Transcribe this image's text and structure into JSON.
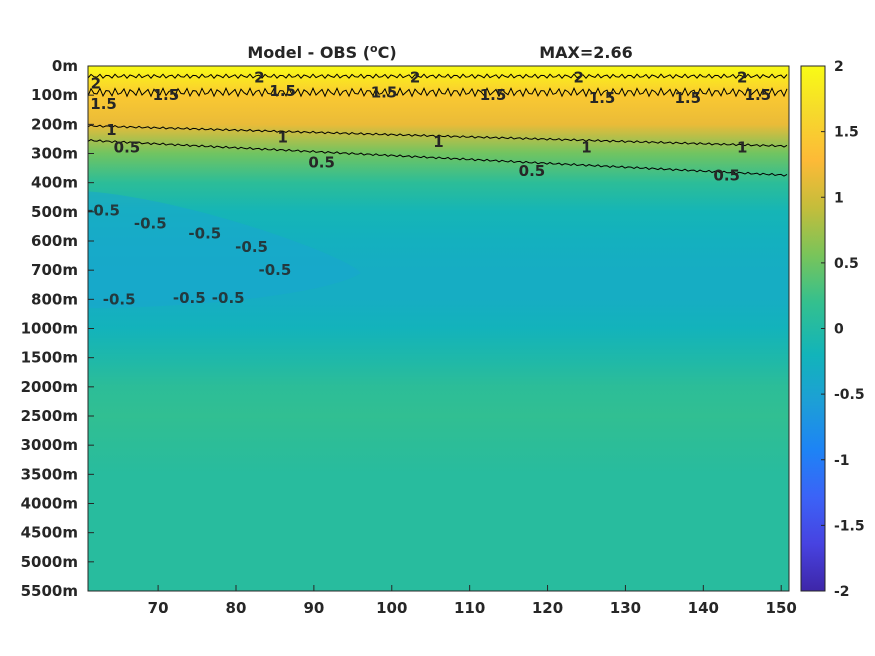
{
  "chart_data": {
    "type": "heatmap",
    "title_left": "Model - OBS (",
    "title_unit_sup": "o",
    "title_unit_after": "C)",
    "title_right": "MAX=2.66",
    "x_ticks": [
      "70",
      "80",
      "90",
      "100",
      "110",
      "120",
      "130",
      "140",
      "150"
    ],
    "x_tick_values": [
      70,
      80,
      90,
      100,
      110,
      120,
      130,
      140,
      150
    ],
    "xlim": [
      61,
      151
    ],
    "y_ticks": [
      "0m",
      "100m",
      "200m",
      "300m",
      "400m",
      "500m",
      "600m",
      "700m",
      "800m",
      "1000m",
      "1500m",
      "2000m",
      "2500m",
      "3000m",
      "3500m",
      "4000m",
      "4500m",
      "5000m",
      "5500m"
    ],
    "colorbar": {
      "min": -2,
      "max": 2,
      "tick_values": [
        2,
        1.5,
        1,
        0.5,
        0,
        -0.5,
        -1,
        -1.5,
        -2
      ],
      "tick_labels": [
        "2",
        "1.5",
        "1",
        "0.5",
        "0",
        "-0.5",
        "-1",
        "-1.5",
        "-2"
      ]
    },
    "colormap": [
      "#3e26a8",
      "#4743e1",
      "#3b63f7",
      "#1d84f5",
      "#1d9fd6",
      "#12b4ba",
      "#34c08e",
      "#79c45a",
      "#c4bd3b",
      "#fdba37",
      "#f6d92c",
      "#f9fb15"
    ],
    "depth_profile": [
      {
        "depth": "0m",
        "anomaly": 2.3
      },
      {
        "depth": "100m",
        "anomaly": 1.45
      },
      {
        "depth": "200m",
        "anomaly": 1.15
      },
      {
        "depth": "300m",
        "anomaly": 0.5
      },
      {
        "depth": "400m",
        "anomaly": 0.1
      },
      {
        "depth": "500m",
        "anomaly": -0.15
      },
      {
        "depth": "600m",
        "anomaly": -0.25
      },
      {
        "depth": "700m",
        "anomaly": -0.3
      },
      {
        "depth": "800m",
        "anomaly": -0.3
      },
      {
        "depth": "1000m",
        "anomaly": -0.2
      },
      {
        "depth": "1500m",
        "anomaly": -0.05
      },
      {
        "depth": "2000m",
        "anomaly": 0.1
      },
      {
        "depth": "2500m",
        "anomaly": 0.15
      },
      {
        "depth": "3000m",
        "anomaly": 0.1
      },
      {
        "depth": "3500m",
        "anomaly": 0.05
      },
      {
        "depth": "4000m",
        "anomaly": 0.05
      },
      {
        "depth": "4500m",
        "anomaly": 0.05
      },
      {
        "depth": "5000m",
        "anomaly": 0.05
      },
      {
        "depth": "5500m",
        "anomaly": 0.05
      }
    ],
    "contour_labels": [
      {
        "text": "2",
        "x": 62,
        "depth_index": 0.6,
        "color": "black"
      },
      {
        "text": "1.5",
        "x": 63,
        "depth_index": 1.3,
        "color": "black"
      },
      {
        "text": "1.5",
        "x": 71,
        "depth_index": 1.0,
        "color": "black"
      },
      {
        "text": "2",
        "x": 83,
        "depth_index": 0.4,
        "color": "black"
      },
      {
        "text": "1.5",
        "x": 86,
        "depth_index": 0.85,
        "color": "black"
      },
      {
        "text": "2",
        "x": 103,
        "depth_index": 0.4,
        "color": "black"
      },
      {
        "text": "1.5",
        "x": 99,
        "depth_index": 0.9,
        "color": "black"
      },
      {
        "text": "2",
        "x": 124,
        "depth_index": 0.4,
        "color": "black"
      },
      {
        "text": "1.5",
        "x": 113,
        "depth_index": 1.0,
        "color": "black"
      },
      {
        "text": "1.5",
        "x": 127,
        "depth_index": 1.1,
        "color": "black"
      },
      {
        "text": "2",
        "x": 145,
        "depth_index": 0.4,
        "color": "black"
      },
      {
        "text": "1.5",
        "x": 138,
        "depth_index": 1.1,
        "color": "black"
      },
      {
        "text": "1.5",
        "x": 147,
        "depth_index": 1.0,
        "color": "black"
      },
      {
        "text": "1",
        "x": 64,
        "depth_index": 2.2,
        "color": "black"
      },
      {
        "text": "1",
        "x": 86,
        "depth_index": 2.45,
        "color": "black"
      },
      {
        "text": "1",
        "x": 106,
        "depth_index": 2.6,
        "color": "black"
      },
      {
        "text": "1",
        "x": 125,
        "depth_index": 2.8,
        "color": "black"
      },
      {
        "text": "1",
        "x": 145,
        "depth_index": 2.8,
        "color": "black"
      },
      {
        "text": "0.5",
        "x": 66,
        "depth_index": 2.8,
        "color": "black"
      },
      {
        "text": "0.5",
        "x": 91,
        "depth_index": 3.3,
        "color": "black"
      },
      {
        "text": "0.5",
        "x": 118,
        "depth_index": 3.6,
        "color": "black"
      },
      {
        "text": "0.5",
        "x": 143,
        "depth_index": 3.75,
        "color": "black"
      },
      {
        "text": "-0.5",
        "x": 63,
        "depth_index": 4.95,
        "color": "brown"
      },
      {
        "text": "-0.5",
        "x": 69,
        "depth_index": 5.4,
        "color": "brown"
      },
      {
        "text": "-0.5",
        "x": 76,
        "depth_index": 5.75,
        "color": "brown"
      },
      {
        "text": "-0.5",
        "x": 82,
        "depth_index": 6.2,
        "color": "brown"
      },
      {
        "text": "-0.5",
        "x": 85,
        "depth_index": 7.0,
        "color": "brown"
      },
      {
        "text": "-0.5",
        "x": 65,
        "depth_index": 8.0,
        "color": "brown"
      },
      {
        "text": "-0.5",
        "x": 74,
        "depth_index": 7.95,
        "color": "brown"
      },
      {
        "text": "-0.5",
        "x": 79,
        "depth_index": 7.95,
        "color": "brown"
      }
    ]
  }
}
